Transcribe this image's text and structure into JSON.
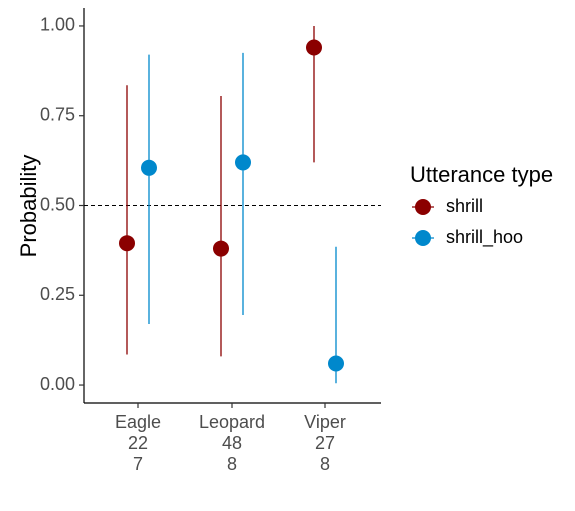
{
  "chart_data": {
    "type": "scatter",
    "title": "",
    "xlabel": "",
    "ylabel": "Probability",
    "ylim": [
      -0.05,
      1.05
    ],
    "yticks": [
      "0.00",
      "0.25",
      "0.50",
      "0.75",
      "1.00"
    ],
    "ytick_values": [
      0,
      0.25,
      0.5,
      0.75,
      1.0
    ],
    "categories": [
      "Eagle",
      "Leopard",
      "Viper"
    ],
    "category_sublabels": [
      [
        "22",
        "7"
      ],
      [
        "48",
        "8"
      ],
      [
        "27",
        "8"
      ]
    ],
    "reference_line": {
      "y": 0.5,
      "style": "dashed"
    },
    "grid": false,
    "legend": {
      "title": "Utterance type",
      "position": "right"
    },
    "series": [
      {
        "name": "shrill",
        "color": "#8B0000",
        "values": [
          0.395,
          0.38,
          0.94
        ],
        "lower": [
          0.085,
          0.08,
          0.62
        ],
        "upper": [
          0.835,
          0.805,
          1.0
        ]
      },
      {
        "name": "shrill_hoo",
        "color": "#0088CC",
        "values": [
          0.605,
          0.62,
          0.06
        ],
        "lower": [
          0.17,
          0.195,
          0.005
        ],
        "upper": [
          0.92,
          0.925,
          0.385
        ]
      }
    ]
  }
}
